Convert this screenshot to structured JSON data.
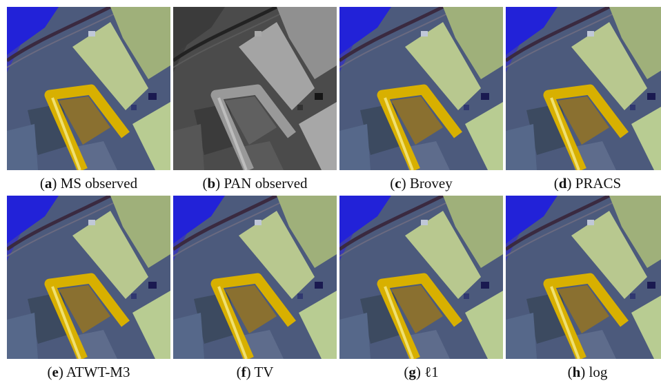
{
  "panels": [
    {
      "caption": [
        "(",
        "a",
        ") MS observed"
      ]
    },
    {
      "caption": [
        "(",
        "b",
        ") PAN observed"
      ]
    },
    {
      "caption": [
        "(",
        "c",
        ") Brovey"
      ]
    },
    {
      "caption": [
        "(",
        "d",
        ") PRACS"
      ]
    },
    {
      "caption": [
        "(",
        "e",
        ") ATWT-M3"
      ]
    },
    {
      "caption": [
        "(",
        "f",
        ") TV"
      ]
    },
    {
      "caption": [
        "(",
        "g",
        ") ℓ1"
      ]
    },
    {
      "caption": [
        "(",
        "h",
        ") log"
      ]
    }
  ]
}
